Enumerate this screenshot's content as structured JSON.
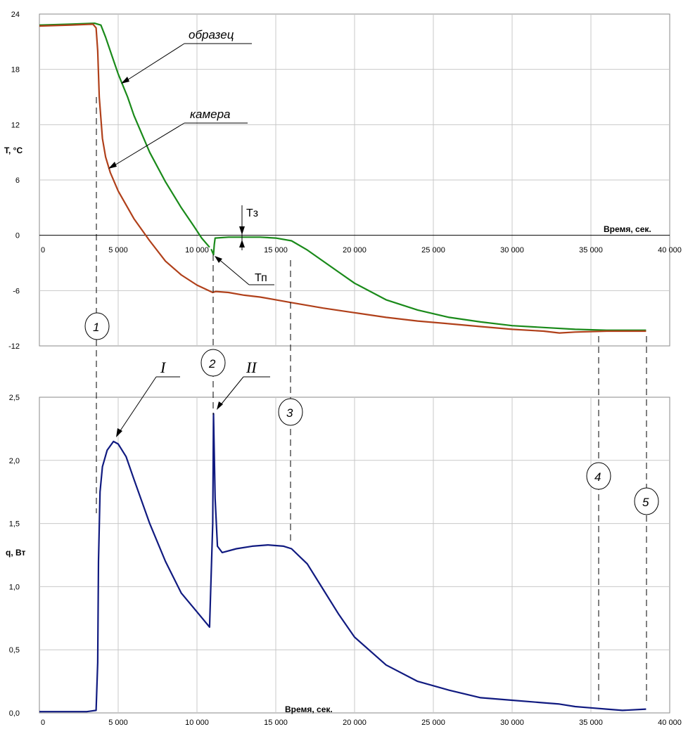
{
  "chart_data": [
    {
      "type": "line",
      "xlabel": "Время, сек.",
      "ylabel": "T, °C",
      "xlim": [
        0,
        40000
      ],
      "ylim": [
        -12,
        24
      ],
      "x_ticks": [
        "0",
        "5 000",
        "10 000",
        "15 000",
        "20 000",
        "25 000",
        "30 000",
        "35 000",
        "40 000"
      ],
      "y_ticks": [
        "-12",
        "-6",
        "0",
        "6",
        "12",
        "18",
        "24"
      ],
      "grid": true,
      "colors": {
        "sample": "#1a8a1a",
        "chamber": "#b0401a"
      },
      "series": [
        {
          "name": "образец",
          "color": "#1a8a1a",
          "segments": [
            [
              [
                0,
                22.8
              ],
              [
                2000,
                22.9
              ],
              [
                3500,
                23.0
              ],
              [
                3900,
                22.8
              ],
              [
                4200,
                21.5
              ],
              [
                4600,
                19.5
              ],
              [
                5000,
                17.5
              ],
              [
                5600,
                15.0
              ],
              [
                6000,
                13.0
              ],
              [
                7000,
                9.0
              ],
              [
                8000,
                5.8
              ],
              [
                9000,
                3.0
              ],
              [
                9800,
                1.0
              ],
              [
                10300,
                -0.3
              ],
              [
                10800,
                -1.3
              ]
            ],
            [
              [
                10900,
                -1.5
              ],
              [
                11050,
                -2.1
              ],
              [
                11100,
                -1.0
              ],
              [
                11150,
                -0.3
              ],
              [
                12000,
                -0.2
              ],
              [
                13000,
                -0.2
              ],
              [
                14000,
                -0.2
              ],
              [
                15000,
                -0.3
              ],
              [
                16000,
                -0.6
              ],
              [
                17000,
                -1.6
              ],
              [
                18000,
                -2.8
              ],
              [
                19000,
                -4.0
              ],
              [
                20000,
                -5.2
              ],
              [
                22000,
                -7.0
              ],
              [
                24000,
                -8.1
              ],
              [
                26000,
                -8.9
              ],
              [
                28000,
                -9.4
              ],
              [
                30000,
                -9.8
              ],
              [
                32000,
                -10.0
              ],
              [
                34000,
                -10.2
              ],
              [
                36000,
                -10.3
              ],
              [
                38500,
                -10.3
              ]
            ]
          ]
        },
        {
          "name": "камера",
          "color": "#b0401a",
          "segments": [
            [
              [
                0,
                22.7
              ],
              [
                2000,
                22.8
              ],
              [
                3400,
                22.9
              ],
              [
                3600,
                22.5
              ],
              [
                3700,
                20.0
              ],
              [
                3800,
                15.0
              ],
              [
                4000,
                10.5
              ],
              [
                4200,
                8.5
              ],
              [
                4500,
                6.8
              ],
              [
                5000,
                4.8
              ],
              [
                6000,
                1.8
              ],
              [
                7000,
                -0.6
              ],
              [
                8000,
                -2.8
              ],
              [
                9000,
                -4.3
              ],
              [
                10000,
                -5.4
              ],
              [
                11000,
                -6.2
              ],
              [
                11200,
                -6.1
              ],
              [
                12000,
                -6.2
              ],
              [
                13000,
                -6.5
              ],
              [
                14000,
                -6.7
              ],
              [
                15000,
                -7.0
              ],
              [
                16000,
                -7.3
              ],
              [
                18000,
                -7.9
              ],
              [
                20000,
                -8.4
              ],
              [
                22000,
                -8.9
              ],
              [
                24000,
                -9.3
              ],
              [
                26000,
                -9.6
              ],
              [
                28000,
                -9.9
              ],
              [
                30000,
                -10.2
              ],
              [
                32000,
                -10.4
              ],
              [
                33000,
                -10.6
              ],
              [
                34000,
                -10.5
              ],
              [
                36000,
                -10.4
              ],
              [
                38500,
                -10.4
              ]
            ]
          ]
        }
      ],
      "annotations": {
        "sample_label": "образец",
        "chamber_label": "камера",
        "t_freeze": "Тз",
        "t_supercool": "Тп",
        "markers": [
          "1",
          "2",
          "3",
          "4",
          "5"
        ]
      }
    },
    {
      "type": "line",
      "xlabel": "Время, сек.",
      "ylabel": "q, Вт",
      "xlim": [
        0,
        40000
      ],
      "ylim": [
        0,
        2.5
      ],
      "x_ticks": [
        "0",
        "5 000",
        "10 000",
        "15 000",
        "20 000",
        "25 000",
        "30 000",
        "35 000",
        "40 000"
      ],
      "y_ticks": [
        "0,0",
        "0,5",
        "1,0",
        "1,5",
        "2,0",
        "2,5"
      ],
      "grid": true,
      "series": [
        {
          "color": "#101a80",
          "segments": [
            [
              [
                0,
                0.01
              ],
              [
                3000,
                0.01
              ],
              [
                3600,
                0.02
              ],
              [
                3700,
                0.4
              ],
              [
                3750,
                1.2
              ],
              [
                3850,
                1.75
              ],
              [
                4000,
                1.95
              ],
              [
                4300,
                2.08
              ],
              [
                4700,
                2.15
              ],
              [
                5000,
                2.13
              ],
              [
                5500,
                2.03
              ],
              [
                6000,
                1.85
              ],
              [
                7000,
                1.5
              ],
              [
                8000,
                1.2
              ],
              [
                9000,
                0.95
              ],
              [
                10000,
                0.8
              ],
              [
                10800,
                0.68
              ],
              [
                11000,
                1.5
              ],
              [
                11050,
                2.37
              ],
              [
                11150,
                1.7
              ],
              [
                11300,
                1.32
              ],
              [
                11600,
                1.27
              ],
              [
                12500,
                1.3
              ],
              [
                13500,
                1.32
              ],
              [
                14500,
                1.33
              ],
              [
                15500,
                1.32
              ],
              [
                16000,
                1.3
              ],
              [
                17000,
                1.18
              ],
              [
                18000,
                0.98
              ],
              [
                19000,
                0.78
              ],
              [
                20000,
                0.6
              ],
              [
                22000,
                0.38
              ],
              [
                24000,
                0.25
              ],
              [
                26000,
                0.18
              ],
              [
                28000,
                0.12
              ],
              [
                30000,
                0.1
              ],
              [
                32000,
                0.08
              ],
              [
                33000,
                0.07
              ],
              [
                34000,
                0.05
              ],
              [
                35000,
                0.04
              ],
              [
                36000,
                0.03
              ],
              [
                37000,
                0.02
              ],
              [
                38500,
                0.03
              ]
            ]
          ]
        }
      ],
      "annotations": {
        "peak1": "I",
        "peak2": "II"
      }
    }
  ]
}
